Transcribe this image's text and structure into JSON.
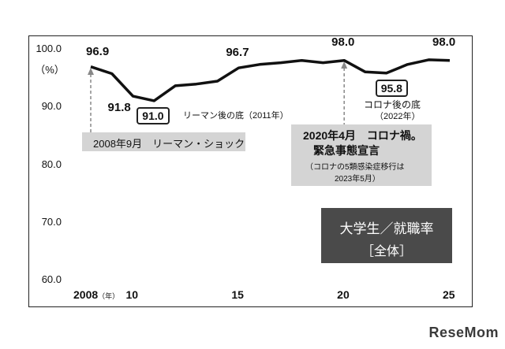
{
  "chart_data": {
    "type": "line",
    "title": "大学生／就職率",
    "subtitle": "［全体］",
    "yunit": "（%）",
    "ylim": [
      60,
      100
    ],
    "yticks": [
      "100.0",
      "90.0",
      "80.0",
      "70.0",
      "60.0"
    ],
    "xlim": [
      2008,
      2025
    ],
    "xticks": [
      {
        "year": 2008,
        "label": "2008"
      },
      {
        "year": 2010,
        "label": "10"
      },
      {
        "year": 2015,
        "label": "15"
      },
      {
        "year": 2020,
        "label": "20"
      },
      {
        "year": 2025,
        "label": "25"
      }
    ],
    "xunit": "（年）",
    "series": [
      {
        "x": [
          2008,
          2009,
          2010,
          2011,
          2012,
          2013,
          2014,
          2015,
          2016,
          2017,
          2018,
          2019,
          2020,
          2021,
          2022,
          2023,
          2024,
          2025
        ],
        "values": [
          96.9,
          95.7,
          91.8,
          91.0,
          93.6,
          93.9,
          94.4,
          96.7,
          97.3,
          97.6,
          98.0,
          97.6,
          98.0,
          96.0,
          95.8,
          97.3,
          98.1,
          98.0
        ]
      }
    ],
    "value_labels": [
      {
        "year": 2008,
        "text": "96.9"
      },
      {
        "year": 2010,
        "text": "91.8"
      },
      {
        "year": 2011,
        "text": "91.0"
      },
      {
        "year": 2015,
        "text": "96.7"
      },
      {
        "year": 2020,
        "text": "98.0"
      },
      {
        "year": 2022,
        "text": "95.8"
      },
      {
        "year": 2025,
        "text": "98.0"
      }
    ],
    "annotations": {
      "lehman_low": "リーマン後の底（2011年）",
      "lehman_event": "2008年9月　リーマン・ショック",
      "corona_low_title": "コロナ後の底",
      "corona_low_year": "（2022年）",
      "corona_event_line1": "2020年4月　コロナ禍。",
      "corona_event_line2": "緊急事態宣言",
      "corona_event_line3": "（コロナの5類感染症移行は",
      "corona_event_line4": "2023年5月）"
    }
  },
  "logo": "ReseMom"
}
